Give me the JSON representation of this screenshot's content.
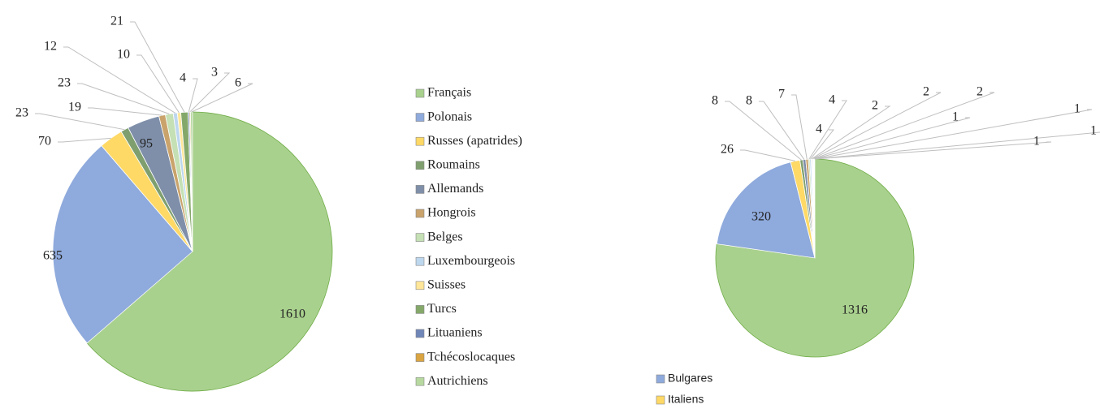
{
  "chart_data": [
    {
      "type": "pie",
      "categories": [
        "Français",
        "Polonais",
        "Russes (apatrides)",
        "Roumains",
        "Allemands",
        "Hongrois",
        "Belges",
        "Luxembourgeois",
        "Suisses",
        "Turcs",
        "Lituaniens",
        "Tchécoslocaques",
        "Autrichiens"
      ],
      "values": [
        1610,
        635,
        70,
        23,
        95,
        19,
        23,
        12,
        10,
        21,
        4,
        3,
        6
      ],
      "colors": [
        "#a9d18e",
        "#8faadc",
        "#ffd966",
        "#7f9f6f",
        "#7f8fa9",
        "#c9a36b",
        "#c5e0b4",
        "#bdd7ee",
        "#ffe699",
        "#84a86a",
        "#6f86b8",
        "#d9a441",
        "#b7d9a0"
      ]
    },
    {
      "type": "pie",
      "categories": [
        null,
        "Bulgares",
        "Italiens",
        null,
        null,
        null,
        null,
        null,
        null,
        null,
        null,
        null,
        null,
        null,
        null
      ],
      "values": [
        1316,
        320,
        26,
        8,
        8,
        7,
        4,
        4,
        2,
        2,
        2,
        1,
        1,
        1,
        1
      ],
      "colors": [
        "#a9d18e",
        "#8faadc",
        "#ffd966",
        "#7f9f6f",
        "#7f8fa9",
        "#c9a36b",
        "#c5e0b4",
        "#bdd7ee",
        "#ffe699",
        "#84a86a",
        "#6f86b8",
        "#d9a441",
        "#b7d9a0",
        "#9db3e0",
        "#ffe08a"
      ]
    }
  ]
}
